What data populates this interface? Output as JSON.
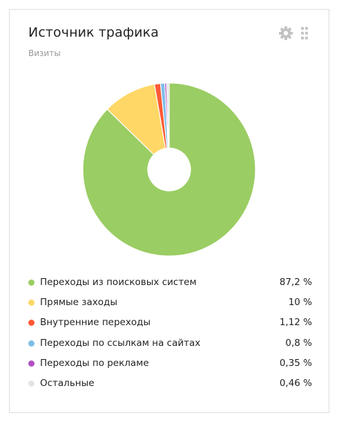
{
  "widget": {
    "title": "Источник трафика",
    "subtitle": "Визиты",
    "settings_icon": "gear-icon",
    "drag_icon": "drag-handle-icon"
  },
  "chart_data": {
    "type": "pie",
    "donut": true,
    "title": "Источник трафика",
    "subtitle": "Визиты",
    "unit": "%",
    "legend": "bottom",
    "categories": [
      "Переходы из поисковых систем",
      "Прямые заходы",
      "Внутренние переходы",
      "Переходы по ссылкам на сайтах",
      "Переходы по рекламе",
      "Остальные"
    ],
    "values": [
      87.2,
      10,
      1.12,
      0.8,
      0.35,
      0.46
    ],
    "value_labels": [
      "87,2 %",
      "10 %",
      "1,12 %",
      "0,8 %",
      "0,35 %",
      "0,46 %"
    ],
    "colors": [
      "#9acd63",
      "#ffd767",
      "#ff5a36",
      "#7fbde8",
      "#b051c4",
      "#e4e4e4"
    ]
  }
}
